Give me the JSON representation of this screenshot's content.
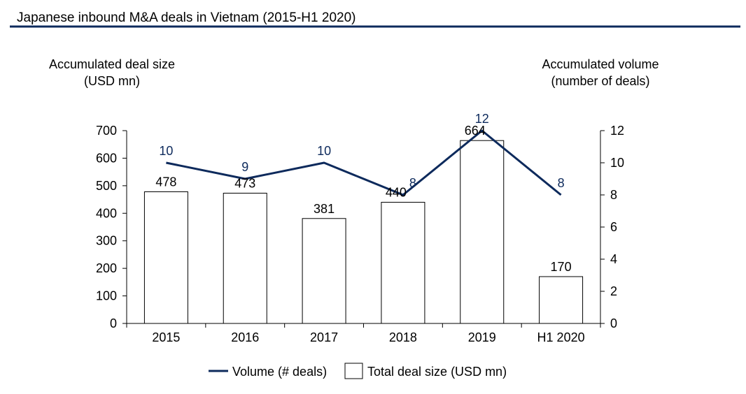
{
  "title": "Japanese inbound M&A deals in Vietnam (2015-H1 2020)",
  "colors": {
    "navy": "#0d2a5c",
    "bar_fill": "#ffffff",
    "bar_stroke": "#000000",
    "axis": "#000000",
    "text": "#000000"
  },
  "chart_data": {
    "type": "bar",
    "title": "Japanese inbound M&A deals in Vietnam (2015-H1 2020)",
    "categories": [
      "2015",
      "2016",
      "2017",
      "2018",
      "2019",
      "H1 2020"
    ],
    "series": [
      {
        "name": "Total deal size (USD mn)",
        "type": "bar",
        "axis": "left",
        "values": [
          478,
          473,
          381,
          440,
          664,
          170
        ]
      },
      {
        "name": "Volume (# deals)",
        "type": "line",
        "axis": "right",
        "values": [
          10,
          9,
          10,
          8,
          12,
          8
        ]
      }
    ],
    "left_axis": {
      "label_line1": "Accumulated deal size",
      "label_line2": "(USD mn)",
      "ylim": [
        0,
        700
      ],
      "ticks": [
        0,
        100,
        200,
        300,
        400,
        500,
        600,
        700
      ]
    },
    "right_axis": {
      "label_line1": "Accumulated volume",
      "label_line2": "(number of deals)",
      "ylim": [
        0,
        12
      ],
      "ticks": [
        0,
        2,
        4,
        6,
        8,
        10,
        12
      ]
    },
    "legend": {
      "position": "bottom",
      "items": [
        {
          "label": "Volume (# deals)",
          "kind": "line"
        },
        {
          "label": "Total deal size (USD mn)",
          "kind": "box"
        }
      ]
    },
    "grid": false
  }
}
